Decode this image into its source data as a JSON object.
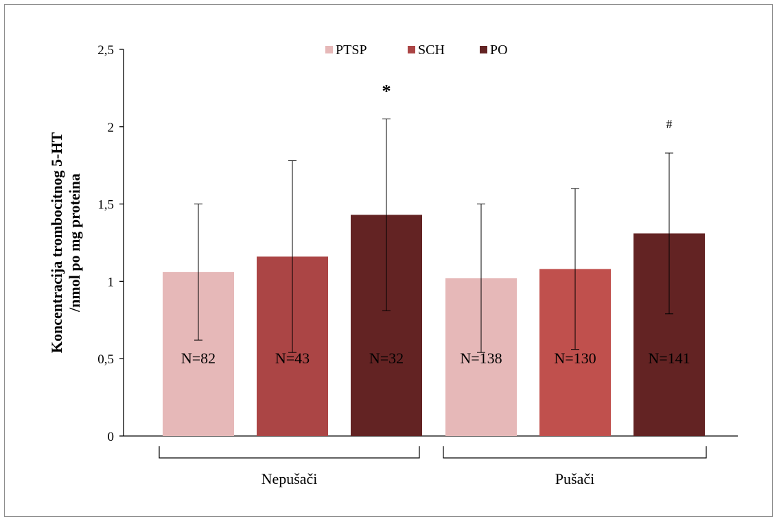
{
  "chart_data": {
    "type": "bar",
    "ylabel_lines": [
      "Koncentracija trombocitnog 5-HT",
      "/nmol po mg proteina"
    ],
    "ylim": [
      0,
      2.5
    ],
    "yticks": [
      {
        "value": 0,
        "label": "0"
      },
      {
        "value": 0.5,
        "label": "0,5"
      },
      {
        "value": 1,
        "label": "1"
      },
      {
        "value": 1.5,
        "label": "1,5"
      },
      {
        "value": 2,
        "label": "2"
      },
      {
        "value": 2.5,
        "label": "2,5"
      }
    ],
    "groups": [
      "Nepušači",
      "Pušači"
    ],
    "legend_position": "top-center",
    "series": [
      {
        "name": "PTSP",
        "color": "#e6b8b8",
        "values": [
          1.06,
          1.02
        ],
        "errors": [
          0.44,
          0.48
        ],
        "n_labels": [
          "N=82",
          "N=138"
        ]
      },
      {
        "name": "SCH",
        "color": "#ab4545",
        "values": [
          1.16,
          1.08
        ],
        "errors": [
          0.62,
          0.52
        ],
        "n_labels": [
          "N=43",
          "N=130"
        ]
      },
      {
        "name": "PO",
        "color": "#632323",
        "values": [
          1.43,
          1.31
        ],
        "errors": [
          0.62,
          0.52
        ],
        "n_labels": [
          "N=32",
          "N=141"
        ]
      }
    ],
    "group_colors": [
      [
        "#e6b8b8",
        "#ab4545",
        "#632323"
      ],
      [
        "#e6b8b8",
        "#c0504d",
        "#632323"
      ]
    ],
    "annotations": [
      "*",
      "#"
    ]
  }
}
